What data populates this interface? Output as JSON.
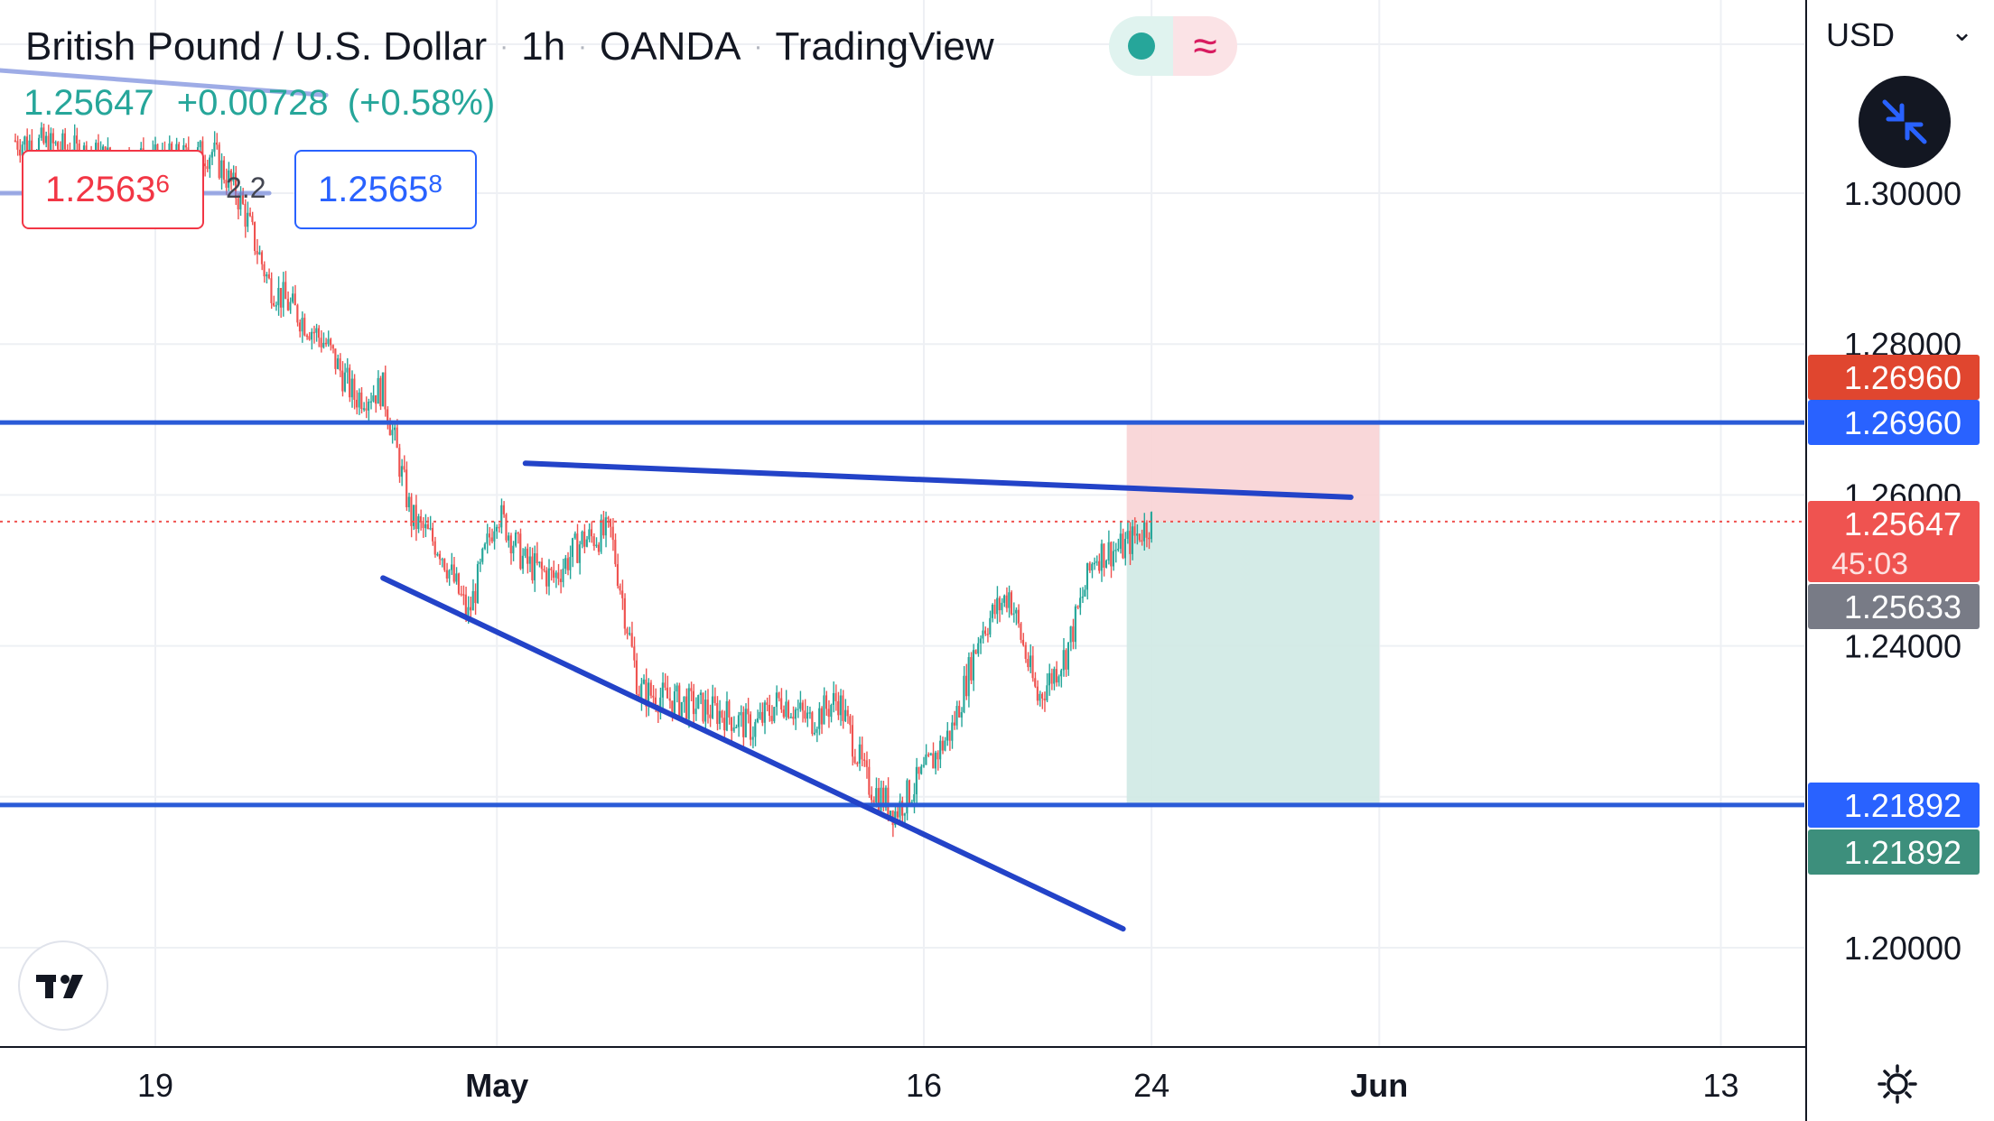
{
  "header": {
    "symbol": "British Pound / U.S. Dollar",
    "interval": "1h",
    "exchange": "OANDA",
    "source": "TradingView",
    "separator": "·",
    "wave_icon": "≈"
  },
  "quote": {
    "last": "1.25647",
    "change": "+0.00728",
    "change_pct": "(+0.58%)",
    "sell_main": "1.2563",
    "sell_sup": "6",
    "buy_main": "1.2565",
    "buy_sup": "8",
    "spread": "2.2"
  },
  "price_axis": {
    "currency": "USD",
    "chevron": "⌄"
  },
  "icons": [
    "green-status-dot",
    "wave-icon",
    "collapse-arrows-icon",
    "tradingview-logo-icon",
    "gear-icon"
  ],
  "chart_data": {
    "type": "candlestick",
    "title": "British Pound / U.S. Dollar · 1h · OANDA · TradingView",
    "y_axis": {
      "ticks": [
        "1.30000",
        "1.28000",
        "1.26000",
        "1.24000",
        "1.20000"
      ],
      "tick_values": [
        1.3,
        1.28,
        1.26,
        1.24,
        1.2
      ],
      "range": [
        1.1855,
        1.3238
      ]
    },
    "x_axis": {
      "ticks": [
        "19",
        "May",
        "16",
        "24",
        "Jun",
        "13"
      ],
      "tick_dates": [
        "2022-04-19",
        "2022-05-01",
        "2022-05-16",
        "2022-05-24",
        "2022-06-01",
        "2022-06-13"
      ]
    },
    "price_path": [
      [
        "2022-04-14",
        1.307
      ],
      [
        "2022-04-15",
        1.3065
      ],
      [
        "2022-04-18",
        1.304
      ],
      [
        "2022-04-20",
        1.3045
      ],
      [
        "2022-04-21",
        1.3055
      ],
      [
        "2022-04-22",
        1.299
      ],
      [
        "2022-04-23",
        1.288
      ],
      [
        "2022-04-25",
        1.28
      ],
      [
        "2022-04-26",
        1.273
      ],
      [
        "2022-04-27",
        1.274
      ],
      [
        "2022-04-28",
        1.257
      ],
      [
        "2022-04-29",
        1.253
      ],
      [
        "2022-04-30",
        1.244
      ],
      [
        "2022-05-01",
        1.258
      ],
      [
        "2022-05-02",
        1.251
      ],
      [
        "2022-05-03",
        1.249
      ],
      [
        "2022-05-04",
        1.254
      ],
      [
        "2022-05-05",
        1.255
      ],
      [
        "2022-05-06",
        1.234
      ],
      [
        "2022-05-08",
        1.232
      ],
      [
        "2022-05-09",
        1.231
      ],
      [
        "2022-05-10",
        1.229
      ],
      [
        "2022-05-11",
        1.233
      ],
      [
        "2022-05-12",
        1.23
      ],
      [
        "2022-05-13",
        1.233
      ],
      [
        "2022-05-14",
        1.222
      ],
      [
        "2022-05-15",
        1.218
      ],
      [
        "2022-05-16",
        1.223
      ],
      [
        "2022-05-17",
        1.229
      ],
      [
        "2022-05-18",
        1.242
      ],
      [
        "2022-05-19",
        1.247
      ],
      [
        "2022-05-20",
        1.233
      ],
      [
        "2022-05-21",
        1.239
      ],
      [
        "2022-05-22",
        1.252
      ],
      [
        "2022-05-23",
        1.253
      ],
      [
        "2022-05-24",
        1.2565
      ]
    ],
    "lines": [
      {
        "name": "resistance-horizontal",
        "value": 1.2696
      },
      {
        "name": "support-horizontal",
        "value": 1.21892
      },
      {
        "name": "upper-trendline",
        "from": [
          "2022-05-02",
          1.2642
        ],
        "to": [
          "2022-05-31",
          1.2597
        ]
      },
      {
        "name": "lower-trendline",
        "from": [
          "2022-04-27",
          1.249
        ],
        "to": [
          "2022-05-23",
          1.2025
        ]
      },
      {
        "name": "prior-trendline",
        "from": [
          "2022-04-11",
          1.317
        ],
        "to": [
          "2022-04-25",
          1.313
        ]
      },
      {
        "name": "prior-horizontal",
        "from": [
          "2022-04-11",
          1.3
        ],
        "to": [
          "2022-04-23",
          1.3
        ]
      }
    ],
    "position": {
      "type": "short",
      "start": "2022-05-23",
      "end": "2022-06-01",
      "entry": 1.25647,
      "stop": 1.2696,
      "target": 1.21892
    },
    "axis_labels": [
      {
        "text": "1.26960",
        "value": 1.2696,
        "color": "#e0462f",
        "sub": ""
      },
      {
        "text": "1.26960",
        "value": 1.2696,
        "color": "#2962ff",
        "sub": ""
      },
      {
        "text": "1.25647",
        "value": 1.25647,
        "color": "#ef5350",
        "sub": "45:03"
      },
      {
        "text": "1.25633",
        "value": 1.25633,
        "color": "#787b86",
        "sub": ""
      },
      {
        "text": "1.21892",
        "value": 1.21892,
        "color": "#2962ff",
        "sub": ""
      },
      {
        "text": "1.21892",
        "value": 1.21892,
        "color": "#3d8f7c",
        "sub": ""
      }
    ],
    "current_price": 1.25647,
    "colors": {
      "up": "#26a69a",
      "down": "#ef5350",
      "lines": "#2343c8",
      "short_risk": "#f8d3d5",
      "short_reward": "#cfe9e4"
    }
  }
}
